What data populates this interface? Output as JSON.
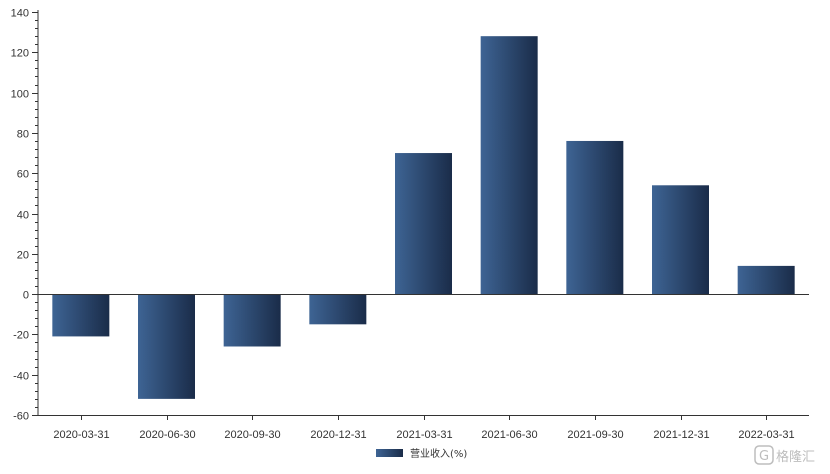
{
  "chart_data": {
    "type": "bar",
    "title": "",
    "xlabel": "",
    "ylabel": "",
    "categories": [
      "2020-03-31",
      "2020-06-30",
      "2020-09-30",
      "2020-12-31",
      "2021-03-31",
      "2021-06-30",
      "2021-09-30",
      "2021-12-31",
      "2022-03-31"
    ],
    "series": [
      {
        "name": "营业收入(%)",
        "values": [
          -21,
          -52,
          -26,
          -15,
          70,
          128,
          76,
          54,
          14
        ]
      }
    ],
    "ylim": [
      -60,
      140
    ],
    "yticks": [
      -60,
      -40,
      -20,
      0,
      20,
      40,
      60,
      80,
      100,
      120,
      140
    ],
    "grid": false,
    "legend_position": "bottom-center",
    "colors": {
      "bar_light": "#3e6494",
      "bar_dark": "#1a2c49",
      "axis": "#333333"
    }
  },
  "watermark": {
    "text": "格隆汇",
    "logo_letter": "G"
  }
}
